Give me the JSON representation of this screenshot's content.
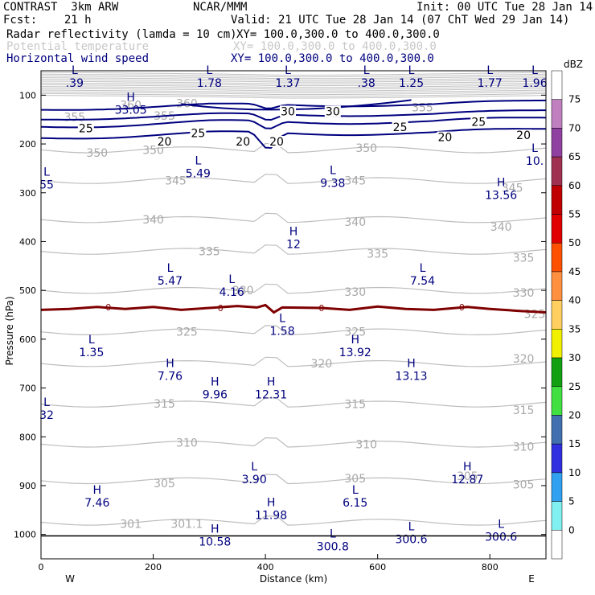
{
  "header": {
    "model": "CONTRAST  3km ARW",
    "org": "NCAR/MMM",
    "init": "Init: 00 UTC Tue 28 Jan 14",
    "fcst": "Fcst:    21 h",
    "valid": "Valid: 21 UTC Tue 28 Jan 14 (07 ChT Wed 29 Jan 14)",
    "fields": [
      {
        "name": "Radar reflectivity (lamda = 10 cm)",
        "xy": "XY= 100.0,300.0 to 400.0,300.0"
      },
      {
        "name": "Potential temperature",
        "xy": "XY= 100.0,300.0 to 400.0,300.0"
      },
      {
        "name": "Horizontal wind speed",
        "xy": "XY= 100.0,300.0 to 400.0,300.0"
      }
    ]
  },
  "colors": {
    "wind": "#00007f",
    "theta": "#b4b4b4",
    "freezing": "#7f0000"
  },
  "chart_data": {
    "type": "cross-section",
    "xlabel": "Distance (km)",
    "ylabel": "Pressure (hPa)",
    "xlim": [
      0,
      900
    ],
    "ylim": [
      1050,
      50
    ],
    "x_ticks": [
      0,
      200,
      400,
      600,
      800
    ],
    "y_ticks": [
      100,
      200,
      300,
      400,
      500,
      600,
      700,
      800,
      900,
      1000
    ],
    "x_end_labels": {
      "left": "W",
      "right": "E"
    },
    "colorbar": {
      "unit": "dBZ",
      "levels": [
        75,
        70,
        65,
        60,
        55,
        50,
        45,
        40,
        35,
        30,
        25,
        20,
        15,
        10,
        5,
        0
      ],
      "colors": [
        "#ffffff",
        "#c080c0",
        "#9040a0",
        "#a03050",
        "#c00000",
        "#e00000",
        "#ff5000",
        "#ff9040",
        "#ffd060",
        "#f0f000",
        "#10a010",
        "#40e040",
        "#4070b0",
        "#3030e0",
        "#30a0f0",
        "#80f0f0",
        "#ffffff"
      ]
    },
    "theta_contours": [
      {
        "label": "360",
        "x": 260,
        "p": 117
      },
      {
        "label": "360",
        "x": 160,
        "p": 120
      },
      {
        "label": "355",
        "x": 220,
        "p": 142
      },
      {
        "label": "355",
        "x": 680,
        "p": 125
      },
      {
        "label": "355",
        "x": 60,
        "p": 145
      },
      {
        "label": "350",
        "x": 100,
        "p": 218
      },
      {
        "label": "350",
        "x": 200,
        "p": 212
      },
      {
        "label": "350",
        "x": 580,
        "p": 208
      },
      {
        "label": "345",
        "x": 240,
        "p": 275
      },
      {
        "label": "345",
        "x": 560,
        "p": 275
      },
      {
        "label": "345",
        "x": 840,
        "p": 290
      },
      {
        "label": "340",
        "x": 200,
        "p": 355
      },
      {
        "label": "340",
        "x": 560,
        "p": 360
      },
      {
        "label": "340",
        "x": 820,
        "p": 370
      },
      {
        "label": "335",
        "x": 300,
        "p": 420
      },
      {
        "label": "335",
        "x": 600,
        "p": 425
      },
      {
        "label": "335",
        "x": 860,
        "p": 433
      },
      {
        "label": "330",
        "x": 360,
        "p": 500
      },
      {
        "label": "330",
        "x": 560,
        "p": 503
      },
      {
        "label": "330",
        "x": 860,
        "p": 505
      },
      {
        "label": "325",
        "x": 260,
        "p": 585
      },
      {
        "label": "325",
        "x": 560,
        "p": 585
      },
      {
        "label": "325",
        "x": 880,
        "p": 548
      },
      {
        "label": "320",
        "x": 500,
        "p": 650
      },
      {
        "label": "320",
        "x": 860,
        "p": 640
      },
      {
        "label": "315",
        "x": 220,
        "p": 732
      },
      {
        "label": "315",
        "x": 560,
        "p": 733
      },
      {
        "label": "315",
        "x": 860,
        "p": 745
      },
      {
        "label": "310",
        "x": 260,
        "p": 812
      },
      {
        "label": "310",
        "x": 580,
        "p": 815
      },
      {
        "label": "310",
        "x": 860,
        "p": 820
      },
      {
        "label": "305",
        "x": 220,
        "p": 895
      },
      {
        "label": "305",
        "x": 560,
        "p": 885
      },
      {
        "label": "305",
        "x": 760,
        "p": 880
      },
      {
        "label": "305",
        "x": 860,
        "p": 898
      },
      {
        "label": "301",
        "x": 160,
        "p": 978
      },
      {
        "label": "301.1",
        "x": 260,
        "p": 978
      }
    ],
    "wind_contours": [
      {
        "label": "30",
        "x": 440,
        "p": 133
      },
      {
        "label": "30",
        "x": 520,
        "p": 133
      },
      {
        "label": "25",
        "x": 80,
        "p": 168
      },
      {
        "label": "25",
        "x": 280,
        "p": 178
      },
      {
        "label": "25",
        "x": 640,
        "p": 165
      },
      {
        "label": "25",
        "x": 780,
        "p": 155
      },
      {
        "label": "20",
        "x": 220,
        "p": 195
      },
      {
        "label": "20",
        "x": 360,
        "p": 195
      },
      {
        "label": "20",
        "x": 420,
        "p": 195
      },
      {
        "label": "20",
        "x": 720,
        "p": 186
      },
      {
        "label": "20",
        "x": 860,
        "p": 182
      }
    ],
    "freezing_level": {
      "label": "0",
      "points": [
        [
          0,
          540
        ],
        [
          50,
          538
        ],
        [
          100,
          534
        ],
        [
          150,
          538
        ],
        [
          200,
          534
        ],
        [
          250,
          540
        ],
        [
          300,
          536
        ],
        [
          350,
          532
        ],
        [
          385,
          535
        ],
        [
          400,
          530
        ],
        [
          415,
          545
        ],
        [
          430,
          535
        ],
        [
          500,
          536
        ],
        [
          550,
          540
        ],
        [
          600,
          533
        ],
        [
          650,
          538
        ],
        [
          700,
          540
        ],
        [
          760,
          534
        ],
        [
          800,
          538
        ],
        [
          850,
          542
        ],
        [
          900,
          545
        ]
      ]
    },
    "marks": [
      {
        "type": "L",
        "value": ".39",
        "x": 60,
        "p": 60
      },
      {
        "type": "L",
        "value": "1.78",
        "x": 300,
        "p": 60
      },
      {
        "type": "L",
        "value": "1.37",
        "x": 440,
        "p": 60
      },
      {
        "type": "L",
        "value": ".38",
        "x": 580,
        "p": 60
      },
      {
        "type": "L",
        "value": "1.25",
        "x": 660,
        "p": 60
      },
      {
        "type": "L",
        "value": "1.77",
        "x": 800,
        "p": 60
      },
      {
        "type": "L",
        "value": "1.96",
        "x": 880,
        "p": 60
      },
      {
        "type": "H",
        "value": "33.05",
        "x": 160,
        "p": 115
      },
      {
        "type": "L",
        "value": "10.",
        "x": 880,
        "p": 220
      },
      {
        "type": "L",
        "value": "5.49",
        "x": 280,
        "p": 245
      },
      {
        "type": "L",
        "value": "9.38",
        "x": 520,
        "p": 265
      },
      {
        "type": "H",
        "value": "13.56",
        "x": 820,
        "p": 290
      },
      {
        "type": "L",
        "value": "55",
        "x": 10,
        "p": 268
      },
      {
        "type": "H",
        "value": "12",
        "x": 450,
        "p": 390
      },
      {
        "type": "L",
        "value": "5.47",
        "x": 230,
        "p": 465
      },
      {
        "type": "L",
        "value": "7.54",
        "x": 680,
        "p": 465
      },
      {
        "type": "L",
        "value": "4.16",
        "x": 340,
        "p": 488
      },
      {
        "type": "L",
        "value": "1.58",
        "x": 430,
        "p": 568
      },
      {
        "type": "L",
        "value": "1.35",
        "x": 90,
        "p": 612
      },
      {
        "type": "H",
        "value": "13.92",
        "x": 560,
        "p": 612
      },
      {
        "type": "H",
        "value": "7.76",
        "x": 230,
        "p": 660
      },
      {
        "type": "H",
        "value": "13.13",
        "x": 660,
        "p": 660
      },
      {
        "type": "H",
        "value": "9.96",
        "x": 310,
        "p": 698
      },
      {
        "type": "H",
        "value": "12.31",
        "x": 410,
        "p": 698
      },
      {
        "type": "L",
        "value": "32",
        "x": 10,
        "p": 740
      },
      {
        "type": "L",
        "value": "3.90",
        "x": 380,
        "p": 872
      },
      {
        "type": "H",
        "value": "12.87",
        "x": 760,
        "p": 872
      },
      {
        "type": "H",
        "value": "7.46",
        "x": 100,
        "p": 920
      },
      {
        "type": "L",
        "value": "6.15",
        "x": 560,
        "p": 920
      },
      {
        "type": "H",
        "value": "11.98",
        "x": 410,
        "p": 945
      },
      {
        "type": "H",
        "value": "10.58",
        "x": 310,
        "p": 1000
      },
      {
        "type": "L",
        "value": "300.8",
        "x": 520,
        "p": 1010
      },
      {
        "type": "L",
        "value": "300.6",
        "x": 660,
        "p": 995
      },
      {
        "type": "L",
        "value": "300.6",
        "x": 820,
        "p": 990
      }
    ]
  }
}
